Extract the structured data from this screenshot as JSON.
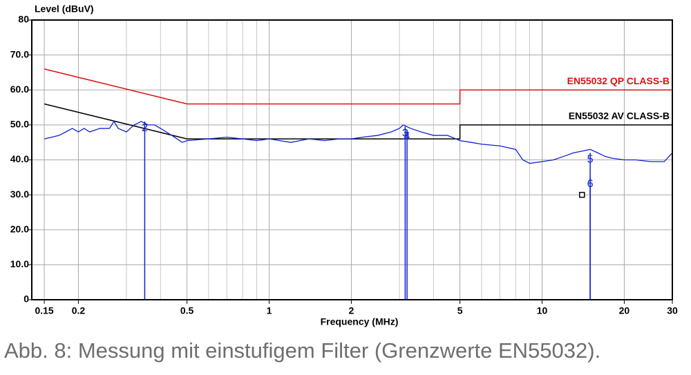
{
  "chart_data": {
    "type": "line",
    "y_axis_label": "Level (dBuV)",
    "x_axis_label": "Frequency (MHz)",
    "caption": "Abb. 8: Messung mit einstufigem Filter (Grenzwerte EN55032).",
    "log_x": true,
    "grid": true,
    "xlim": [
      0.135,
      30
    ],
    "xticks": [
      0.15,
      0.2,
      0.5,
      1,
      2,
      5,
      10,
      20,
      30
    ],
    "x_minor_grid": [
      0.3,
      0.4,
      0.6,
      0.7,
      0.8,
      0.9,
      3,
      4,
      6,
      7,
      8,
      9
    ],
    "ylim": [
      0,
      80
    ],
    "yticks": [
      0,
      {
        "value": 10,
        "label": "10.0"
      },
      {
        "value": 20,
        "label": "20.0"
      },
      {
        "value": 30,
        "label": "30.0"
      },
      {
        "value": 40,
        "label": "40.0"
      },
      {
        "value": 50,
        "label": "50.0"
      },
      {
        "value": 60,
        "label": "60.0"
      },
      {
        "value": 70,
        "label": "70.0"
      },
      80
    ],
    "series": [
      {
        "name": "EN55032 QP CLASS-B",
        "color": "#e01010",
        "x": [
          0.15,
          0.5,
          5,
          5,
          30
        ],
        "values": [
          66,
          56,
          56,
          60,
          60
        ]
      },
      {
        "name": "EN55032 AV  CLASS-B",
        "color": "#000000",
        "x": [
          0.15,
          0.5,
          5,
          5,
          30
        ],
        "values": [
          56,
          46,
          46,
          50,
          50
        ]
      },
      {
        "color": "#1020d0",
        "x": [
          0.15,
          0.16,
          0.17,
          0.18,
          0.19,
          0.2,
          0.21,
          0.22,
          0.24,
          0.26,
          0.27,
          0.28,
          0.3,
          0.32,
          0.34,
          0.36,
          0.38,
          0.4,
          0.44,
          0.48,
          0.5,
          0.6,
          0.7,
          0.8,
          0.9,
          1,
          1.2,
          1.4,
          1.6,
          1.8,
          2,
          2.2,
          2.5,
          2.8,
          3,
          3.1,
          3.3,
          3.6,
          4,
          4.5,
          5,
          5.5,
          6,
          7,
          8,
          8.5,
          9,
          10,
          11,
          12,
          13,
          14,
          15,
          16,
          17,
          18,
          20,
          22,
          25,
          28,
          30
        ],
        "values": [
          46,
          46.5,
          47,
          48,
          49,
          48,
          49,
          48,
          49,
          49,
          51,
          49,
          48,
          50,
          51,
          50,
          50,
          49,
          47,
          45,
          45.5,
          46,
          46.5,
          46,
          45.5,
          46,
          45,
          46,
          45.5,
          46,
          46,
          46.5,
          47,
          48,
          49,
          50,
          49,
          48,
          47,
          47,
          45.5,
          45,
          44.5,
          44,
          43,
          40,
          39,
          39.5,
          40,
          41,
          42,
          42.5,
          43,
          42,
          41,
          40.5,
          40,
          40,
          39.5,
          39.5,
          42
        ]
      }
    ],
    "markers": {
      "color": "#1020d0",
      "labels": [
        "2",
        "3",
        "4",
        "5",
        "6"
      ],
      "x": [
        0.35,
        3.15,
        3.2,
        15,
        15
      ],
      "values": [
        51,
        49.5,
        48.6,
        42,
        35
      ]
    },
    "marker_point": {
      "x": 14,
      "y": 30
    }
  }
}
